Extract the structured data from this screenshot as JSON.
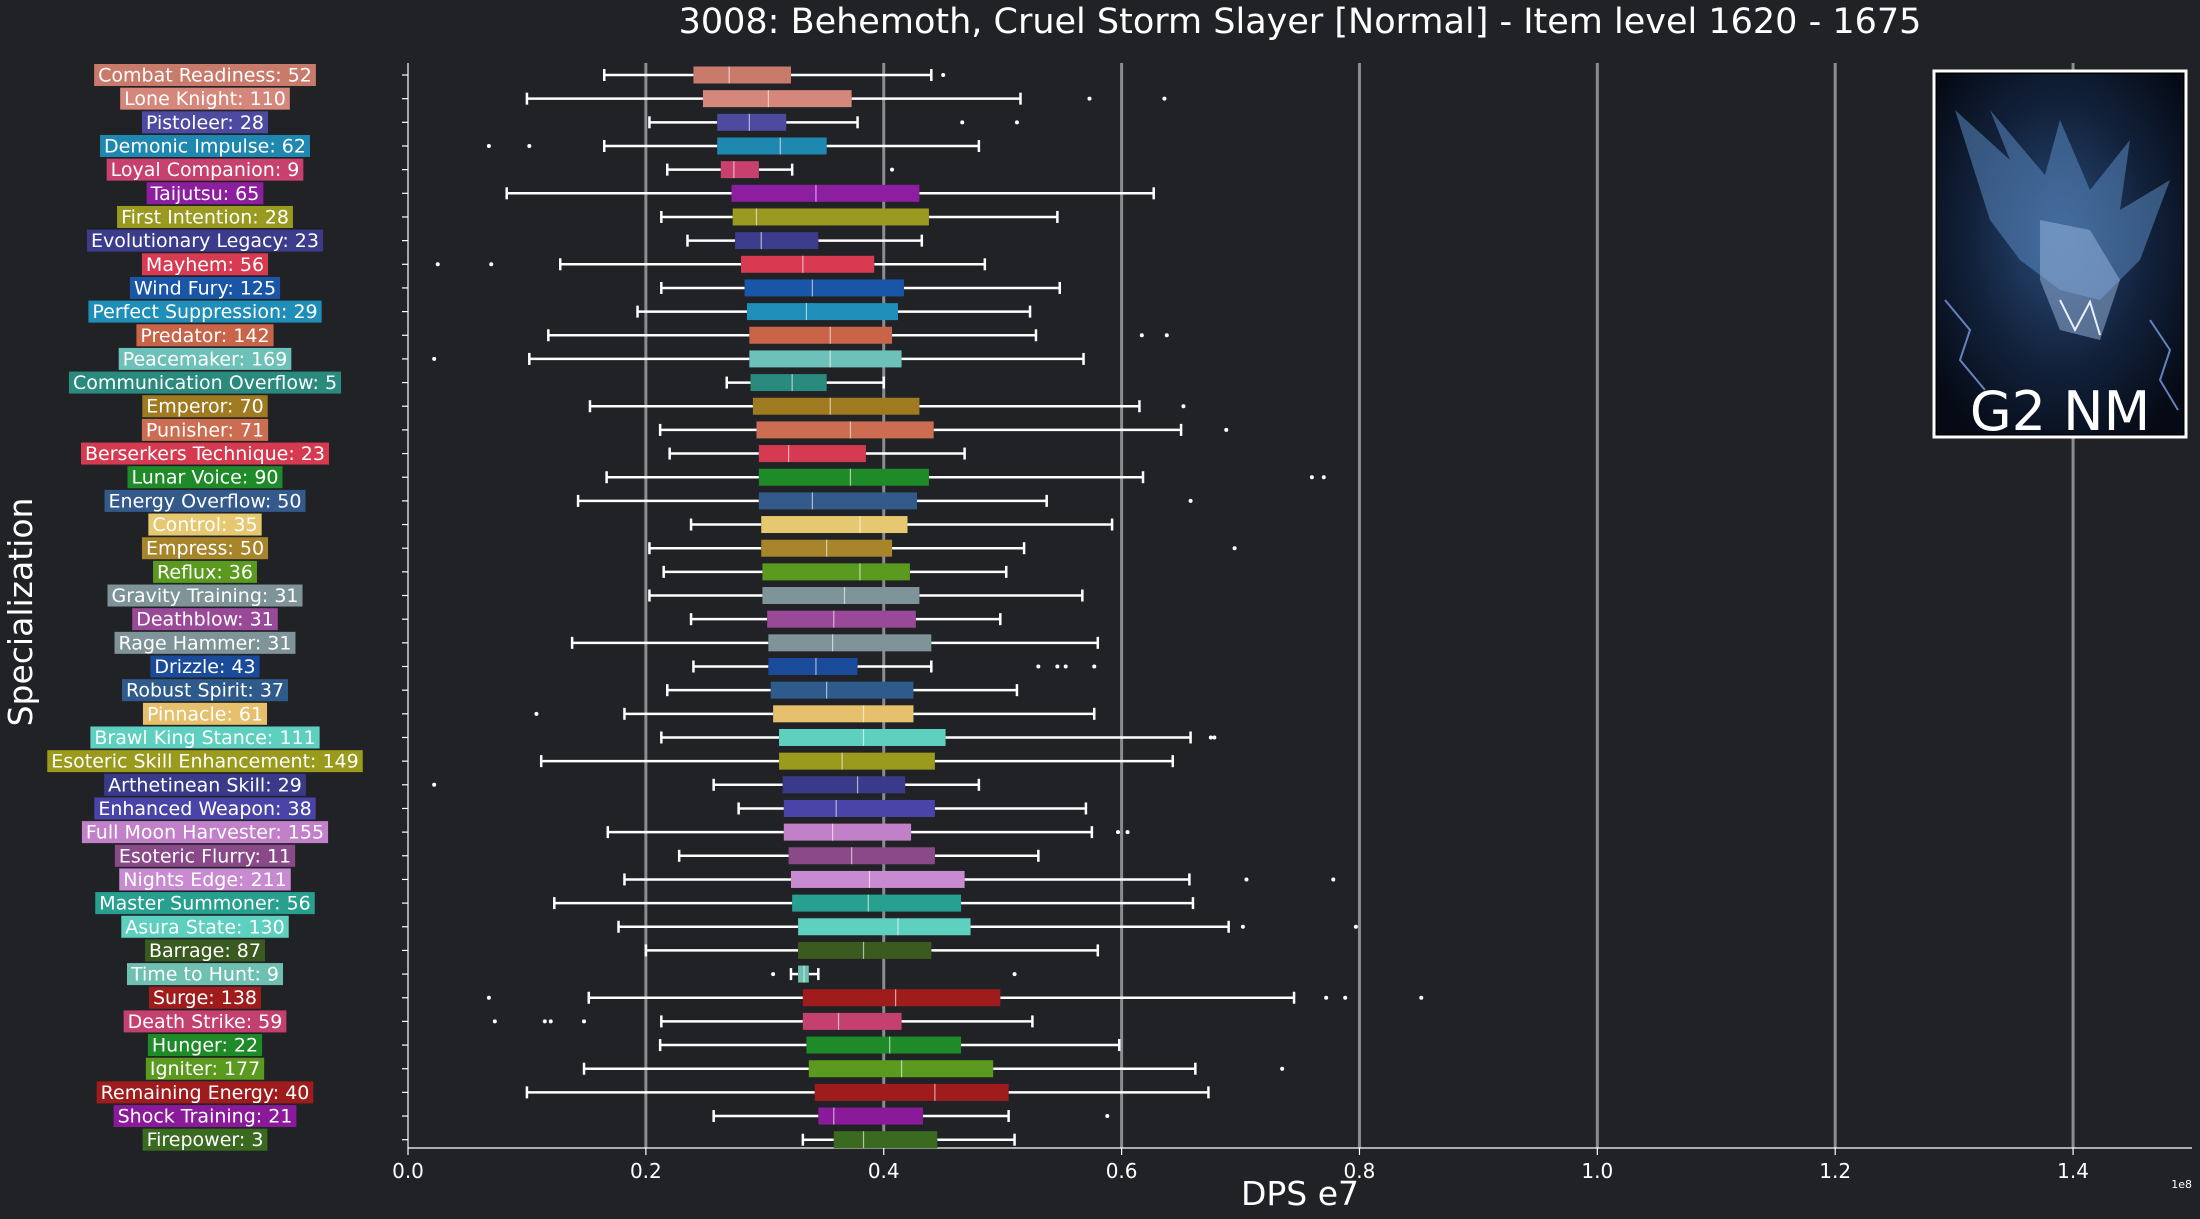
{
  "chart_data": {
    "type": "box",
    "title": "3008: Behemoth, Cruel Storm Slayer [Normal] - Item level 1620 - 1675",
    "xlabel": "DPS e7",
    "ylabel": "Specialization",
    "x_offset_label": "1e8",
    "xlim": [
      0,
      1.5
    ],
    "xticks": [
      0.0,
      0.2,
      0.4,
      0.6,
      0.8,
      1.0,
      1.2,
      1.4
    ],
    "xtick_labels": [
      "0.0",
      "0.2",
      "0.4",
      "0.6",
      "0.8",
      "1.0",
      "1.2",
      "1.4"
    ],
    "grid": "vertical",
    "thumbnail_label": "G2 NM",
    "series": [
      {
        "label": "Combat Readiness: 52",
        "color": "#c97b6b",
        "whisker_low": 0.165,
        "q1": 0.24,
        "median": 0.27,
        "q3": 0.322,
        "whisker_high": 0.44,
        "outliers": [
          0.45
        ]
      },
      {
        "label": "Lone Knight: 110",
        "color": "#d4877a",
        "whisker_low": 0.1,
        "q1": 0.248,
        "median": 0.303,
        "q3": 0.373,
        "whisker_high": 0.515,
        "outliers": [
          0.573,
          0.636
        ]
      },
      {
        "label": "Pistoleer: 28",
        "color": "#4e4aa0",
        "whisker_low": 0.203,
        "q1": 0.26,
        "median": 0.287,
        "q3": 0.318,
        "whisker_high": 0.378,
        "outliers": [
          0.466,
          0.512
        ]
      },
      {
        "label": "Demonic Impulse: 62",
        "color": "#1e88b0",
        "whisker_low": 0.165,
        "q1": 0.26,
        "median": 0.313,
        "q3": 0.352,
        "whisker_high": 0.48,
        "outliers": [
          0.068,
          0.102
        ]
      },
      {
        "label": "Loyal Companion: 9",
        "color": "#c8406e",
        "whisker_low": 0.218,
        "q1": 0.263,
        "median": 0.274,
        "q3": 0.295,
        "whisker_high": 0.323,
        "outliers": [
          0.407
        ]
      },
      {
        "label": "Taijutsu: 65",
        "color": "#8e1ea0",
        "whisker_low": 0.083,
        "q1": 0.272,
        "median": 0.343,
        "q3": 0.43,
        "whisker_high": 0.627,
        "outliers": []
      },
      {
        "label": "First Intention: 28",
        "color": "#9a9a20",
        "whisker_low": 0.213,
        "q1": 0.273,
        "median": 0.293,
        "q3": 0.438,
        "whisker_high": 0.546,
        "outliers": []
      },
      {
        "label": "Evolutionary Legacy: 23",
        "color": "#3c3c8c",
        "whisker_low": 0.235,
        "q1": 0.275,
        "median": 0.297,
        "q3": 0.345,
        "whisker_high": 0.432,
        "outliers": []
      },
      {
        "label": "Mayhem: 56",
        "color": "#d83a52",
        "whisker_low": 0.128,
        "q1": 0.28,
        "median": 0.332,
        "q3": 0.392,
        "whisker_high": 0.485,
        "outliers": [
          0.025,
          0.07
        ]
      },
      {
        "label": "Wind Fury: 125",
        "color": "#1a56a8",
        "whisker_low": 0.213,
        "q1": 0.283,
        "median": 0.34,
        "q3": 0.417,
        "whisker_high": 0.548,
        "outliers": []
      },
      {
        "label": "Perfect Suppression: 29",
        "color": "#1f8eb8",
        "whisker_low": 0.193,
        "q1": 0.285,
        "median": 0.335,
        "q3": 0.412,
        "whisker_high": 0.523,
        "outliers": []
      },
      {
        "label": "Predator: 142",
        "color": "#c86448",
        "whisker_low": 0.118,
        "q1": 0.287,
        "median": 0.355,
        "q3": 0.407,
        "whisker_high": 0.528,
        "outliers": [
          0.617,
          0.638
        ]
      },
      {
        "label": "Peacemaker: 169",
        "color": "#6ec1b8",
        "whisker_low": 0.102,
        "q1": 0.287,
        "median": 0.355,
        "q3": 0.415,
        "whisker_high": 0.568,
        "outliers": [
          0.022
        ]
      },
      {
        "label": "Communication Overflow: 5",
        "color": "#2a8a7e",
        "whisker_low": 0.268,
        "q1": 0.288,
        "median": 0.323,
        "q3": 0.352,
        "whisker_high": 0.4,
        "outliers": []
      },
      {
        "label": "Emperor: 70",
        "color": "#a07a20",
        "whisker_low": 0.153,
        "q1": 0.29,
        "median": 0.355,
        "q3": 0.43,
        "whisker_high": 0.615,
        "outliers": [
          0.652
        ]
      },
      {
        "label": "Punisher: 71",
        "color": "#cc6c50",
        "whisker_low": 0.212,
        "q1": 0.293,
        "median": 0.372,
        "q3": 0.442,
        "whisker_high": 0.65,
        "outliers": [
          0.688
        ]
      },
      {
        "label": "Berserkers Technique: 23",
        "color": "#d63a50",
        "whisker_low": 0.22,
        "q1": 0.295,
        "median": 0.32,
        "q3": 0.385,
        "whisker_high": 0.468,
        "outliers": []
      },
      {
        "label": "Lunar Voice: 90",
        "color": "#1e8a28",
        "whisker_low": 0.167,
        "q1": 0.295,
        "median": 0.372,
        "q3": 0.438,
        "whisker_high": 0.618,
        "outliers": [
          0.76,
          0.77
        ]
      },
      {
        "label": "Energy Overflow: 50",
        "color": "#345a8c",
        "whisker_low": 0.143,
        "q1": 0.295,
        "median": 0.34,
        "q3": 0.428,
        "whisker_high": 0.537,
        "outliers": [
          0.658
        ]
      },
      {
        "label": "Control: 35",
        "color": "#e6c870",
        "whisker_low": 0.238,
        "q1": 0.297,
        "median": 0.38,
        "q3": 0.42,
        "whisker_high": 0.592,
        "outliers": []
      },
      {
        "label": "Empress: 50",
        "color": "#a8842a",
        "whisker_low": 0.203,
        "q1": 0.297,
        "median": 0.352,
        "q3": 0.407,
        "whisker_high": 0.518,
        "outliers": [
          0.695
        ]
      },
      {
        "label": "Reflux: 36",
        "color": "#5a9a1e",
        "whisker_low": 0.215,
        "q1": 0.298,
        "median": 0.38,
        "q3": 0.422,
        "whisker_high": 0.503,
        "outliers": []
      },
      {
        "label": "Gravity Training: 31",
        "color": "#7e9498",
        "whisker_low": 0.203,
        "q1": 0.298,
        "median": 0.367,
        "q3": 0.43,
        "whisker_high": 0.567,
        "outliers": []
      },
      {
        "label": "Deathblow: 31",
        "color": "#9a4898",
        "whisker_low": 0.238,
        "q1": 0.302,
        "median": 0.358,
        "q3": 0.427,
        "whisker_high": 0.498,
        "outliers": []
      },
      {
        "label": "Rage Hammer: 31",
        "color": "#7e9498",
        "whisker_low": 0.138,
        "q1": 0.303,
        "median": 0.357,
        "q3": 0.44,
        "whisker_high": 0.58,
        "outliers": []
      },
      {
        "label": "Drizzle: 43",
        "color": "#1a4a9a",
        "whisker_low": 0.24,
        "q1": 0.303,
        "median": 0.343,
        "q3": 0.378,
        "whisker_high": 0.44,
        "outliers": [
          0.53,
          0.546,
          0.553,
          0.577
        ]
      },
      {
        "label": "Robust Spirit: 37",
        "color": "#2e5a8c",
        "whisker_low": 0.218,
        "q1": 0.305,
        "median": 0.352,
        "q3": 0.425,
        "whisker_high": 0.512,
        "outliers": []
      },
      {
        "label": "Pinnacle: 61",
        "color": "#e6c06c",
        "whisker_low": 0.182,
        "q1": 0.307,
        "median": 0.383,
        "q3": 0.425,
        "whisker_high": 0.577,
        "outliers": [
          0.108
        ]
      },
      {
        "label": "Brawl King Stance: 111",
        "color": "#5ed0c0",
        "whisker_low": 0.213,
        "q1": 0.312,
        "median": 0.383,
        "q3": 0.452,
        "whisker_high": 0.658,
        "outliers": [
          0.675,
          0.678
        ]
      },
      {
        "label": "Esoteric Skill Enhancement: 149",
        "color": "#9a9a1c",
        "whisker_low": 0.112,
        "q1": 0.312,
        "median": 0.365,
        "q3": 0.443,
        "whisker_high": 0.643,
        "outliers": []
      },
      {
        "label": "Arthetinean Skill: 29",
        "color": "#3a3a8a",
        "whisker_low": 0.257,
        "q1": 0.315,
        "median": 0.378,
        "q3": 0.418,
        "whisker_high": 0.48,
        "outliers": [
          0.022
        ]
      },
      {
        "label": "Enhanced Weapon: 38",
        "color": "#4a44a8",
        "whisker_low": 0.278,
        "q1": 0.316,
        "median": 0.36,
        "q3": 0.443,
        "whisker_high": 0.57,
        "outliers": []
      },
      {
        "label": "Full Moon Harvester: 155",
        "color": "#c280c8",
        "whisker_low": 0.168,
        "q1": 0.316,
        "median": 0.357,
        "q3": 0.423,
        "whisker_high": 0.575,
        "outliers": [
          0.597,
          0.605
        ]
      },
      {
        "label": "Esoteric Flurry: 11",
        "color": "#8a4a8a",
        "whisker_low": 0.228,
        "q1": 0.32,
        "median": 0.373,
        "q3": 0.443,
        "whisker_high": 0.53,
        "outliers": []
      },
      {
        "label": "Nights Edge: 211",
        "color": "#c88ad0",
        "whisker_low": 0.182,
        "q1": 0.322,
        "median": 0.388,
        "q3": 0.468,
        "whisker_high": 0.657,
        "outliers": [
          0.705,
          0.778
        ]
      },
      {
        "label": "Master Summoner: 56",
        "color": "#28a090",
        "whisker_low": 0.123,
        "q1": 0.323,
        "median": 0.387,
        "q3": 0.465,
        "whisker_high": 0.66,
        "outliers": []
      },
      {
        "label": "Asura State: 130",
        "color": "#5ed0c0",
        "whisker_low": 0.177,
        "q1": 0.328,
        "median": 0.412,
        "q3": 0.473,
        "whisker_high": 0.69,
        "outliers": [
          0.702,
          0.797
        ]
      },
      {
        "label": "Barrage: 87",
        "color": "#3a5a20",
        "whisker_low": 0.2,
        "q1": 0.328,
        "median": 0.383,
        "q3": 0.44,
        "whisker_high": 0.58,
        "outliers": []
      },
      {
        "label": "Time to Hunt: 9",
        "color": "#6ec1b0",
        "whisker_low": 0.322,
        "q1": 0.328,
        "median": 0.333,
        "q3": 0.337,
        "whisker_high": 0.345,
        "outliers": [
          0.307,
          0.51
        ]
      },
      {
        "label": "Surge: 138",
        "color": "#a01c1c",
        "whisker_low": 0.152,
        "q1": 0.332,
        "median": 0.41,
        "q3": 0.498,
        "whisker_high": 0.745,
        "outliers": [
          0.068,
          0.772,
          0.788,
          0.852
        ]
      },
      {
        "label": "Death Strike: 59",
        "color": "#c4406e",
        "whisker_low": 0.213,
        "q1": 0.332,
        "median": 0.362,
        "q3": 0.415,
        "whisker_high": 0.525,
        "outliers": [
          0.073,
          0.115,
          0.12,
          0.148
        ]
      },
      {
        "label": "Hunger: 22",
        "color": "#1e8a28",
        "whisker_low": 0.212,
        "q1": 0.335,
        "median": 0.405,
        "q3": 0.465,
        "whisker_high": 0.598,
        "outliers": []
      },
      {
        "label": "Igniter: 177",
        "color": "#5a9a1e",
        "whisker_low": 0.148,
        "q1": 0.337,
        "median": 0.415,
        "q3": 0.492,
        "whisker_high": 0.662,
        "outliers": [
          0.735
        ]
      },
      {
        "label": "Remaining Energy: 40",
        "color": "#a01c1c",
        "whisker_low": 0.1,
        "q1": 0.342,
        "median": 0.443,
        "q3": 0.505,
        "whisker_high": 0.673,
        "outliers": []
      },
      {
        "label": "Shock Training: 21",
        "color": "#8a1a9a",
        "whisker_low": 0.257,
        "q1": 0.345,
        "median": 0.358,
        "q3": 0.433,
        "whisker_high": 0.505,
        "outliers": [
          0.588
        ]
      },
      {
        "label": "Firepower: 3",
        "color": "#3a6a20",
        "whisker_low": 0.332,
        "q1": 0.358,
        "median": 0.383,
        "q3": 0.445,
        "whisker_high": 0.51,
        "outliers": []
      }
    ]
  }
}
